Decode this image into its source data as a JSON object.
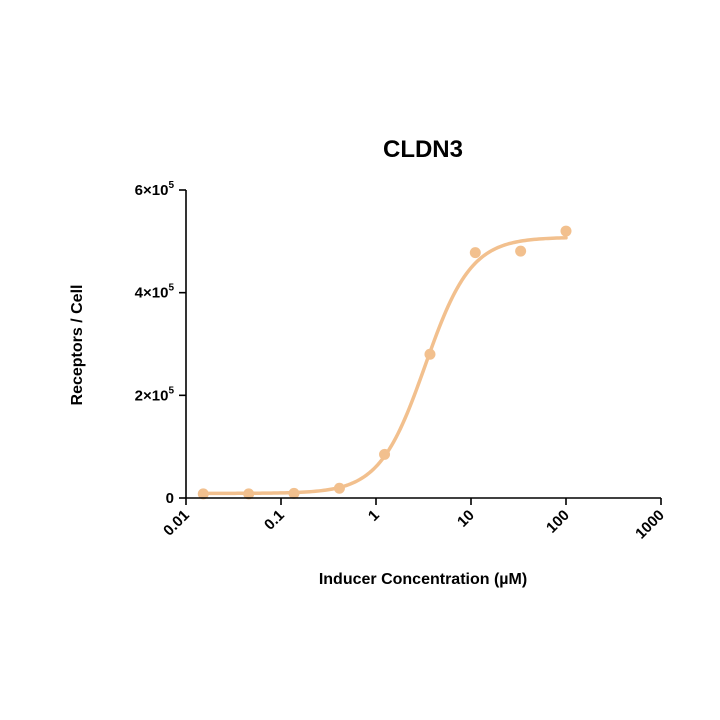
{
  "chart_data": {
    "type": "scatter",
    "title": "CLDN3",
    "xlabel": "Inducer Concentration (µM)",
    "ylabel": "Receptors / Cell",
    "x_scale": "log",
    "xlim": [
      0.01,
      1000
    ],
    "ylim": [
      0,
      600000
    ],
    "x_ticks": [
      {
        "value": 0.01,
        "label": "0.01"
      },
      {
        "value": 0.1,
        "label": "0.1"
      },
      {
        "value": 1,
        "label": "1"
      },
      {
        "value": 10,
        "label": "10"
      },
      {
        "value": 100,
        "label": "100"
      },
      {
        "value": 1000,
        "label": "1000"
      }
    ],
    "y_ticks": [
      {
        "value": 0,
        "base": "0",
        "exp": ""
      },
      {
        "value": 200000,
        "base": "2×10",
        "exp": "5"
      },
      {
        "value": 400000,
        "base": "4×10",
        "exp": "5"
      },
      {
        "value": 600000,
        "base": "6×10",
        "exp": "5"
      }
    ],
    "grid": false,
    "color": "#F2C08E",
    "series": [
      {
        "x": [
          0.0152,
          0.0457,
          0.137,
          0.412,
          1.23,
          3.7,
          11.1,
          33.3,
          100
        ],
        "y": [
          8000,
          8000,
          9000,
          19000,
          85000,
          280000,
          478000,
          481000,
          520000
        ]
      }
    ],
    "fit": {
      "model": "4PL",
      "bottom": 9000,
      "top": 508000,
      "ec50": 3.3,
      "hill": 1.8,
      "x_range": [
        0.0152,
        100
      ]
    }
  }
}
